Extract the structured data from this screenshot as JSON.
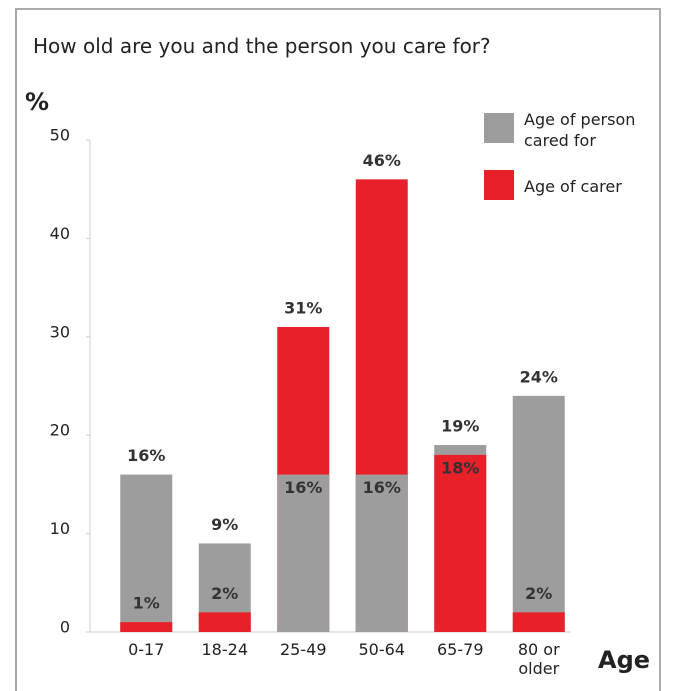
{
  "chart_data": {
    "type": "overlapped_bar",
    "title": "How old are you and the person you care for?",
    "y_label": "%",
    "x_label": "Age",
    "categories": [
      "0-17",
      "18-24",
      "25-49",
      "50-64",
      "65-79",
      "80 or older"
    ],
    "series": [
      {
        "name": "Age of person cared for",
        "color": "#9d9d9d",
        "values": [
          16,
          9,
          16,
          16,
          19,
          24
        ],
        "value_labels": [
          "16%",
          "9%",
          "16%",
          "16%",
          "19%",
          "24%"
        ]
      },
      {
        "name": "Age of carer",
        "color": "#e8202a",
        "values": [
          1,
          2,
          31,
          46,
          18,
          2
        ],
        "value_labels": [
          "1%",
          "2%",
          "31%",
          "46%",
          "18%",
          "2%"
        ]
      }
    ],
    "ylim": [
      0,
      50
    ],
    "yticks": [
      0,
      10,
      20,
      30,
      40,
      50
    ],
    "legend": "upper right"
  }
}
